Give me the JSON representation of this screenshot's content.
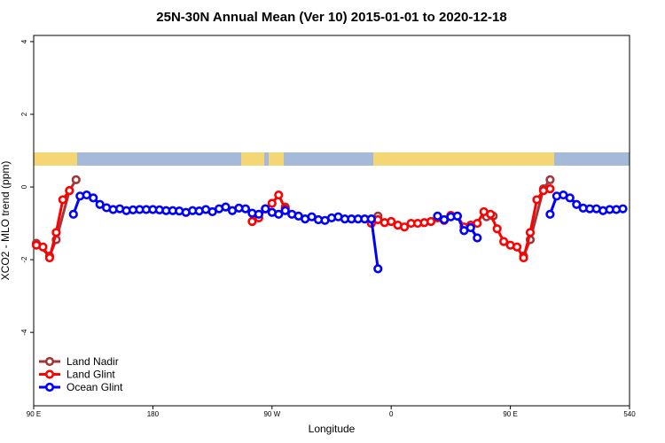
{
  "chart_data": {
    "type": "line",
    "title": "25N-30N Annual Mean (Ver 10)   2015-01-01 to 2020-12-18",
    "x_label": "Longitude",
    "y_label": "XCO2 - MLO trend (ppm)",
    "xlim": [
      90,
      540
    ],
    "ylim": [
      -6.02,
      4.17
    ],
    "xticks": [
      {
        "value": 90,
        "label": "90 E"
      },
      180,
      {
        "value": 270,
        "label": "90 W"
      },
      {
        "value": 360,
        "label": "0"
      },
      {
        "value": 450,
        "label": "90 E"
      },
      540
    ],
    "yticks": [
      4,
      2,
      0,
      -2,
      -4
    ],
    "legend": "lower left",
    "series": [
      {
        "name": "Land Nadir",
        "color": "#a0373a",
        "x": [
          92,
          102,
          107,
          117,
          122,
          200,
          265,
          300,
          280,
          320,
          350,
          400,
          432,
          437,
          445,
          460,
          465,
          475,
          480
        ],
        "values": [
          -1.55,
          -1.9,
          -1.45,
          -0.1,
          0.2,
          null,
          -0.6,
          null,
          -0.55,
          null,
          -0.8,
          null,
          -0.82,
          -0.8,
          null,
          -1.9,
          -1.45,
          -0.05,
          0.2
        ]
      },
      {
        "name": "Land Glint",
        "color": "#ff0000",
        "x": [
          92,
          97,
          102,
          107,
          112,
          117,
          200,
          255,
          260,
          265,
          270,
          275,
          280,
          300,
          345,
          350,
          355,
          360,
          365,
          370,
          375,
          380,
          385,
          390,
          395,
          400,
          405,
          410,
          415,
          420,
          425,
          430,
          435,
          440,
          445,
          450,
          455,
          460,
          465,
          470,
          475,
          480
        ],
        "values": [
          -1.6,
          -1.65,
          -1.95,
          -1.25,
          -0.35,
          -0.1,
          null,
          -0.95,
          -0.85,
          -0.6,
          -0.45,
          -0.22,
          -0.6,
          null,
          -1.0,
          -0.9,
          -0.98,
          -0.95,
          -1.05,
          -1.1,
          -1.0,
          -1.0,
          -0.98,
          -0.95,
          -0.85,
          -0.92,
          -0.78,
          -0.8,
          -1.1,
          -1.05,
          -1.0,
          -0.68,
          -0.75,
          -1.15,
          -1.5,
          -1.6,
          -1.65,
          -1.95,
          -1.25,
          -0.35,
          -0.1,
          -0.05
        ]
      },
      {
        "name": "Ocean Glint",
        "color": "#0000ff",
        "x": [
          120,
          125,
          130,
          135,
          140,
          145,
          150,
          155,
          160,
          165,
          170,
          175,
          180,
          185,
          190,
          195,
          200,
          205,
          210,
          215,
          220,
          225,
          230,
          235,
          240,
          245,
          250,
          255,
          260,
          265,
          270,
          275,
          280,
          285,
          290,
          295,
          300,
          305,
          310,
          315,
          320,
          325,
          330,
          335,
          340,
          345,
          350,
          370,
          395,
          400,
          405,
          410,
          415,
          420,
          425,
          450,
          480,
          485,
          490,
          495,
          500,
          505,
          510,
          515,
          520,
          525,
          530,
          535
        ],
        "values": [
          -0.75,
          -0.25,
          -0.22,
          -0.3,
          -0.48,
          -0.57,
          -0.62,
          -0.6,
          -0.65,
          -0.63,
          -0.62,
          -0.62,
          -0.62,
          -0.63,
          -0.65,
          -0.65,
          -0.66,
          -0.7,
          -0.65,
          -0.66,
          -0.62,
          -0.68,
          -0.6,
          -0.55,
          -0.65,
          -0.58,
          -0.6,
          -0.72,
          -0.75,
          -0.6,
          -0.7,
          -0.75,
          -0.65,
          -0.75,
          -0.8,
          -0.88,
          -0.82,
          -0.9,
          -0.92,
          -0.85,
          -0.82,
          -0.88,
          -0.88,
          -0.88,
          -0.88,
          -0.88,
          -2.25,
          null,
          -0.8,
          -0.9,
          -0.82,
          -0.8,
          -1.2,
          -1.12,
          -1.4,
          null,
          -0.75,
          -0.25,
          -0.22,
          -0.3,
          -0.48,
          -0.58,
          -0.6,
          -0.6,
          -0.65,
          -0.62,
          -0.62,
          -0.6
        ]
      }
    ]
  }
}
